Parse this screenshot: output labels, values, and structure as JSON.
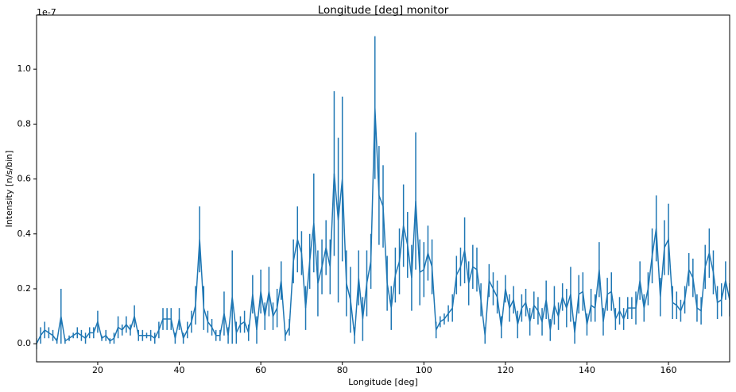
{
  "chart_data": {
    "type": "errorbar_line",
    "title": "Longitude [deg] monitor",
    "x_label": "Longitude [deg]",
    "y_label": "Intensity [n/s/bin]",
    "offset_label": "1e-7",
    "color": "#1f77b4",
    "x": [
      5,
      6,
      7,
      8,
      9,
      10,
      11,
      12,
      13,
      14,
      15,
      16,
      17,
      18,
      19,
      20,
      21,
      22,
      23,
      24,
      25,
      26,
      27,
      28,
      29,
      30,
      31,
      32,
      33,
      34,
      35,
      36,
      37,
      38,
      39,
      40,
      41,
      42,
      43,
      44,
      45,
      46,
      47,
      48,
      49,
      50,
      51,
      52,
      53,
      54,
      55,
      56,
      57,
      58,
      59,
      60,
      61,
      62,
      63,
      64,
      65,
      66,
      67,
      68,
      69,
      70,
      71,
      72,
      73,
      74,
      75,
      76,
      77,
      78,
      79,
      80,
      81,
      82,
      83,
      84,
      85,
      86,
      87,
      88,
      89,
      90,
      91,
      92,
      93,
      94,
      95,
      96,
      97,
      98,
      99,
      100,
      101,
      102,
      103,
      104,
      105,
      106,
      107,
      108,
      109,
      110,
      111,
      112,
      113,
      114,
      115,
      116,
      117,
      118,
      119,
      120,
      121,
      122,
      123,
      124,
      125,
      126,
      127,
      128,
      129,
      130,
      131,
      132,
      133,
      134,
      135,
      136,
      137,
      138,
      139,
      140,
      141,
      142,
      143,
      144,
      145,
      146,
      147,
      148,
      149,
      150,
      151,
      152,
      153,
      154,
      155,
      156,
      157,
      158,
      159,
      160,
      161,
      162,
      163,
      164,
      165,
      166,
      167,
      168,
      169,
      170,
      171,
      172,
      173,
      174,
      175
    ],
    "values": [
      0.0,
      0.03,
      0.05,
      0.04,
      0.03,
      0.01,
      0.1,
      0.01,
      0.02,
      0.03,
      0.04,
      0.03,
      0.02,
      0.04,
      0.04,
      0.08,
      0.02,
      0.03,
      0.01,
      0.02,
      0.06,
      0.05,
      0.07,
      0.05,
      0.1,
      0.03,
      0.03,
      0.03,
      0.03,
      0.02,
      0.05,
      0.09,
      0.09,
      0.09,
      0.02,
      0.09,
      0.02,
      0.05,
      0.08,
      0.14,
      0.38,
      0.13,
      0.08,
      0.06,
      0.03,
      0.03,
      0.11,
      0.03,
      0.17,
      0.04,
      0.07,
      0.08,
      0.04,
      0.18,
      0.05,
      0.19,
      0.1,
      0.19,
      0.1,
      0.13,
      0.23,
      0.03,
      0.06,
      0.3,
      0.38,
      0.33,
      0.13,
      0.3,
      0.44,
      0.22,
      0.28,
      0.35,
      0.28,
      0.62,
      0.45,
      0.6,
      0.22,
      0.16,
      0.03,
      0.24,
      0.09,
      0.22,
      0.3,
      0.86,
      0.54,
      0.5,
      0.22,
      0.13,
      0.25,
      0.3,
      0.43,
      0.36,
      0.24,
      0.52,
      0.26,
      0.27,
      0.33,
      0.28,
      0.05,
      0.08,
      0.09,
      0.11,
      0.13,
      0.25,
      0.28,
      0.34,
      0.22,
      0.28,
      0.27,
      0.16,
      0.03,
      0.23,
      0.2,
      0.17,
      0.06,
      0.2,
      0.13,
      0.16,
      0.07,
      0.13,
      0.15,
      0.08,
      0.14,
      0.12,
      0.08,
      0.16,
      0.05,
      0.14,
      0.1,
      0.17,
      0.13,
      0.18,
      0.04,
      0.18,
      0.19,
      0.07,
      0.14,
      0.13,
      0.27,
      0.08,
      0.18,
      0.19,
      0.09,
      0.12,
      0.09,
      0.13,
      0.13,
      0.13,
      0.23,
      0.13,
      0.2,
      0.32,
      0.42,
      0.17,
      0.35,
      0.38,
      0.15,
      0.14,
      0.12,
      0.16,
      0.27,
      0.24,
      0.13,
      0.12,
      0.28,
      0.33,
      0.26,
      0.15,
      0.16,
      0.23,
      0.16
    ],
    "errors": [
      0.02,
      0.03,
      0.03,
      0.02,
      0.02,
      0.01,
      0.1,
      0.01,
      0.01,
      0.01,
      0.02,
      0.02,
      0.02,
      0.02,
      0.02,
      0.04,
      0.01,
      0.02,
      0.01,
      0.02,
      0.04,
      0.02,
      0.03,
      0.02,
      0.04,
      0.02,
      0.02,
      0.01,
      0.02,
      0.02,
      0.03,
      0.04,
      0.04,
      0.04,
      0.02,
      0.04,
      0.02,
      0.03,
      0.04,
      0.07,
      0.12,
      0.08,
      0.04,
      0.03,
      0.02,
      0.02,
      0.08,
      0.03,
      0.17,
      0.04,
      0.03,
      0.04,
      0.03,
      0.07,
      0.05,
      0.08,
      0.05,
      0.09,
      0.05,
      0.07,
      0.07,
      0.02,
      0.03,
      0.08,
      0.12,
      0.08,
      0.08,
      0.1,
      0.18,
      0.12,
      0.1,
      0.1,
      0.1,
      0.3,
      0.3,
      0.3,
      0.12,
      0.12,
      0.03,
      0.1,
      0.08,
      0.12,
      0.1,
      0.26,
      0.18,
      0.15,
      0.1,
      0.08,
      0.1,
      0.12,
      0.15,
      0.12,
      0.12,
      0.25,
      0.12,
      0.1,
      0.1,
      0.1,
      0.03,
      0.02,
      0.02,
      0.03,
      0.05,
      0.07,
      0.07,
      0.12,
      0.08,
      0.08,
      0.08,
      0.06,
      0.03,
      0.06,
      0.06,
      0.06,
      0.04,
      0.05,
      0.05,
      0.05,
      0.05,
      0.05,
      0.05,
      0.05,
      0.05,
      0.05,
      0.05,
      0.07,
      0.04,
      0.07,
      0.05,
      0.05,
      0.07,
      0.1,
      0.04,
      0.07,
      0.07,
      0.04,
      0.06,
      0.05,
      0.1,
      0.05,
      0.06,
      0.07,
      0.04,
      0.05,
      0.04,
      0.04,
      0.04,
      0.06,
      0.07,
      0.05,
      0.06,
      0.1,
      0.12,
      0.07,
      0.1,
      0.13,
      0.06,
      0.05,
      0.04,
      0.05,
      0.06,
      0.07,
      0.05,
      0.05,
      0.08,
      0.09,
      0.08,
      0.06,
      0.06,
      0.07,
      0.06
    ],
    "xlim": [
      5,
      175
    ],
    "xticks": [
      20,
      40,
      60,
      80,
      100,
      120,
      140,
      160
    ],
    "ylim": [
      -0.066,
      1.197
    ],
    "yticks": [
      {
        "value": 0,
        "label": "0.0"
      },
      0.2,
      0.4,
      0.6,
      0.8,
      {
        "value": 1,
        "label": "1.0"
      }
    ]
  }
}
